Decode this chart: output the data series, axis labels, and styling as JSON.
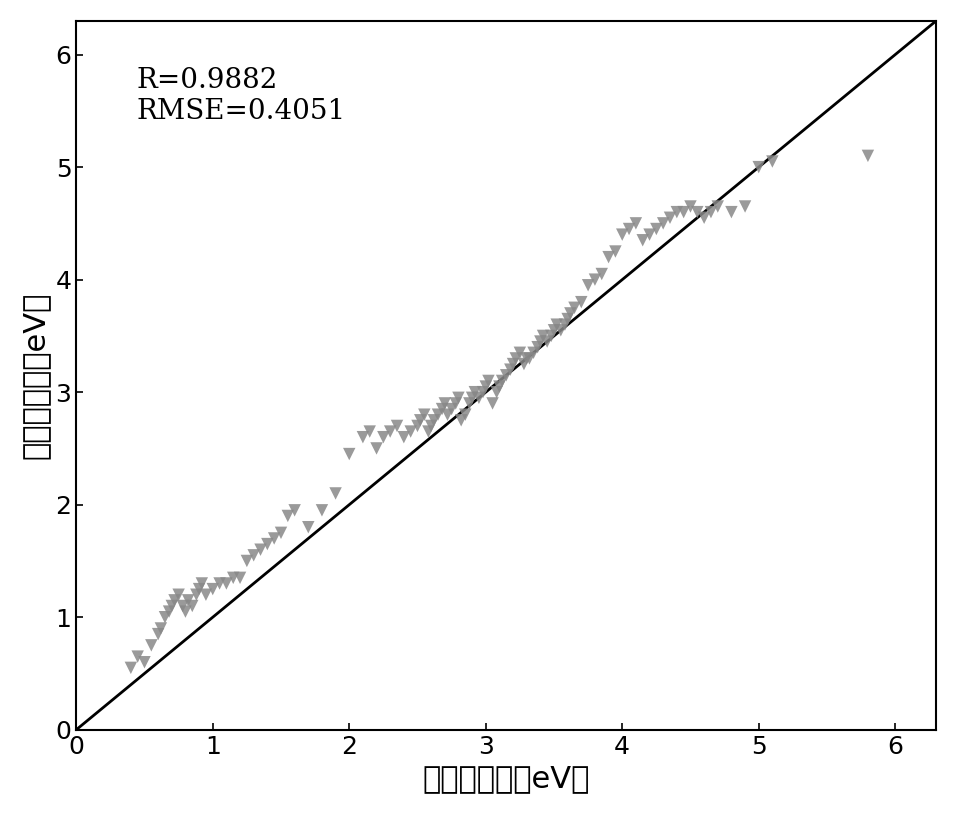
{
  "title": "",
  "xlabel": "真实带隙値（eV）",
  "ylabel": "预报带隙値（eV）",
  "annotation_line1": "R=0.9882",
  "annotation_line2": "RMSE=0.4051",
  "xlim": [
    0,
    6.3
  ],
  "ylim": [
    0,
    6.3
  ],
  "xticks": [
    0,
    1,
    2,
    3,
    4,
    5,
    6
  ],
  "yticks": [
    0,
    1,
    2,
    3,
    4,
    5,
    6
  ],
  "marker_color": "#888888",
  "marker_size": 80,
  "line_color": "#000000",
  "background_color": "#ffffff",
  "scatter_x": [
    0.4,
    0.45,
    0.5,
    0.55,
    0.6,
    0.62,
    0.65,
    0.68,
    0.7,
    0.72,
    0.75,
    0.78,
    0.8,
    0.82,
    0.85,
    0.88,
    0.9,
    0.92,
    0.95,
    1.0,
    1.05,
    1.1,
    1.15,
    1.2,
    1.25,
    1.3,
    1.35,
    1.4,
    1.45,
    1.5,
    1.55,
    1.6,
    1.7,
    1.8,
    1.9,
    2.0,
    2.1,
    2.15,
    2.2,
    2.25,
    2.3,
    2.35,
    2.4,
    2.45,
    2.5,
    2.52,
    2.55,
    2.58,
    2.6,
    2.62,
    2.65,
    2.68,
    2.7,
    2.72,
    2.75,
    2.78,
    2.8,
    2.82,
    2.85,
    2.88,
    2.9,
    2.92,
    2.95,
    2.98,
    3.0,
    3.02,
    3.05,
    3.08,
    3.1,
    3.12,
    3.15,
    3.18,
    3.2,
    3.22,
    3.25,
    3.28,
    3.3,
    3.32,
    3.35,
    3.38,
    3.4,
    3.42,
    3.45,
    3.48,
    3.5,
    3.52,
    3.55,
    3.58,
    3.6,
    3.62,
    3.65,
    3.7,
    3.75,
    3.8,
    3.85,
    3.9,
    3.95,
    4.0,
    4.05,
    4.1,
    4.15,
    4.2,
    4.25,
    4.3,
    4.35,
    4.4,
    4.45,
    4.5,
    4.55,
    4.6,
    4.65,
    4.7,
    4.8,
    4.9,
    5.0,
    5.1,
    5.8
  ],
  "scatter_y": [
    0.55,
    0.65,
    0.6,
    0.75,
    0.85,
    0.9,
    1.0,
    1.05,
    1.1,
    1.15,
    1.2,
    1.1,
    1.05,
    1.15,
    1.1,
    1.2,
    1.25,
    1.3,
    1.2,
    1.25,
    1.3,
    1.3,
    1.35,
    1.35,
    1.5,
    1.55,
    1.6,
    1.65,
    1.7,
    1.75,
    1.9,
    1.95,
    1.8,
    1.95,
    2.1,
    2.45,
    2.6,
    2.65,
    2.5,
    2.6,
    2.65,
    2.7,
    2.6,
    2.65,
    2.7,
    2.75,
    2.8,
    2.65,
    2.7,
    2.75,
    2.8,
    2.85,
    2.9,
    2.8,
    2.85,
    2.9,
    2.95,
    2.75,
    2.8,
    2.9,
    2.95,
    3.0,
    2.95,
    3.0,
    3.05,
    3.1,
    2.9,
    3.0,
    3.05,
    3.1,
    3.15,
    3.2,
    3.25,
    3.3,
    3.35,
    3.25,
    3.3,
    3.3,
    3.35,
    3.4,
    3.45,
    3.5,
    3.45,
    3.5,
    3.55,
    3.6,
    3.55,
    3.6,
    3.65,
    3.7,
    3.75,
    3.8,
    3.95,
    4.0,
    4.05,
    4.2,
    4.25,
    4.4,
    4.45,
    4.5,
    4.35,
    4.4,
    4.45,
    4.5,
    4.55,
    4.6,
    4.6,
    4.65,
    4.6,
    4.55,
    4.6,
    4.65,
    4.6,
    4.65,
    5.0,
    5.05,
    5.1
  ]
}
